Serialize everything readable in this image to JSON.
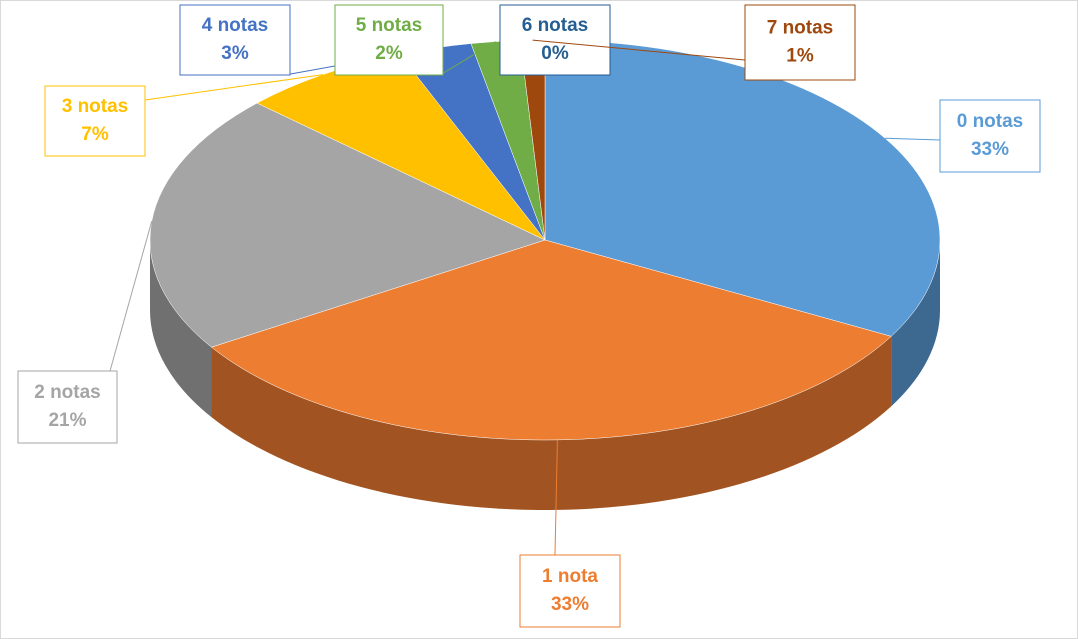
{
  "chart_data": {
    "type": "pie",
    "categories": [
      "0 notas",
      "1 nota",
      "2 notas",
      "3 notas",
      "4 notas",
      "5 notas",
      "6 notas",
      "7 notas"
    ],
    "values": [
      33,
      33,
      21,
      7,
      3,
      2,
      0,
      1
    ],
    "value_labels": [
      "33%",
      "33%",
      "21%",
      "7%",
      "3%",
      "2%",
      "0%",
      "1%"
    ],
    "colors": [
      "#5b9bd5",
      "#ed7d31",
      "#a5a5a5",
      "#ffc000",
      "#4472c4",
      "#70ad47",
      "#255e91",
      "#9e480e"
    ]
  }
}
